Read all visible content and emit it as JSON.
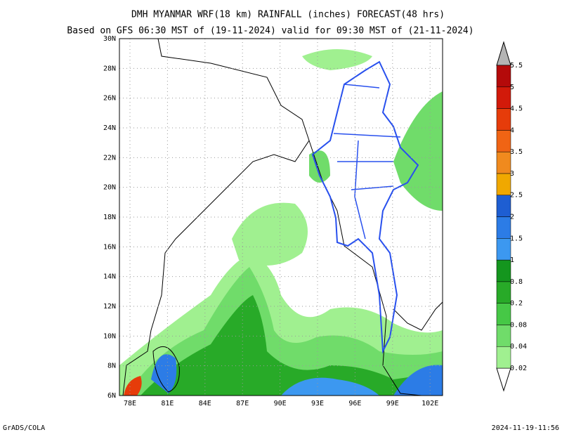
{
  "title": "DMH MYANMAR WRF(18 km) RAINFALL (inches) FORECAST(48 hrs)",
  "subtitle": "Based on GFS 06:30 MST of (19-11-2024) valid for 09:30 MST of (21-11-2024)",
  "map": {
    "lat_labels": [
      "30N",
      "28N",
      "26N",
      "24N",
      "22N",
      "20N",
      "18N",
      "16N",
      "14N",
      "12N",
      "10N",
      "8N",
      "6N"
    ],
    "lon_labels": [
      "78E",
      "81E",
      "84E",
      "87E",
      "90E",
      "93E",
      "96E",
      "99E",
      "102E"
    ]
  },
  "colorbar": {
    "levels": [
      "0.02",
      "0.04",
      "0.08",
      "0.2",
      "0.8",
      "1",
      "1.5",
      "2",
      "2.5",
      "3",
      "3.5",
      "4",
      "4.5",
      "5",
      "5.5"
    ],
    "colors": [
      "#a0f090",
      "#70dc6a",
      "#46c846",
      "#28aa28",
      "#14961e",
      "#3c98f0",
      "#2c7ce6",
      "#1e5ed2",
      "#f0a800",
      "#f08a1e",
      "#f06414",
      "#e63c0a",
      "#d21a0a",
      "#b40a0a"
    ]
  },
  "footer": {
    "left": "GrADS/COLA",
    "right": "2024-11-19-11:56"
  }
}
